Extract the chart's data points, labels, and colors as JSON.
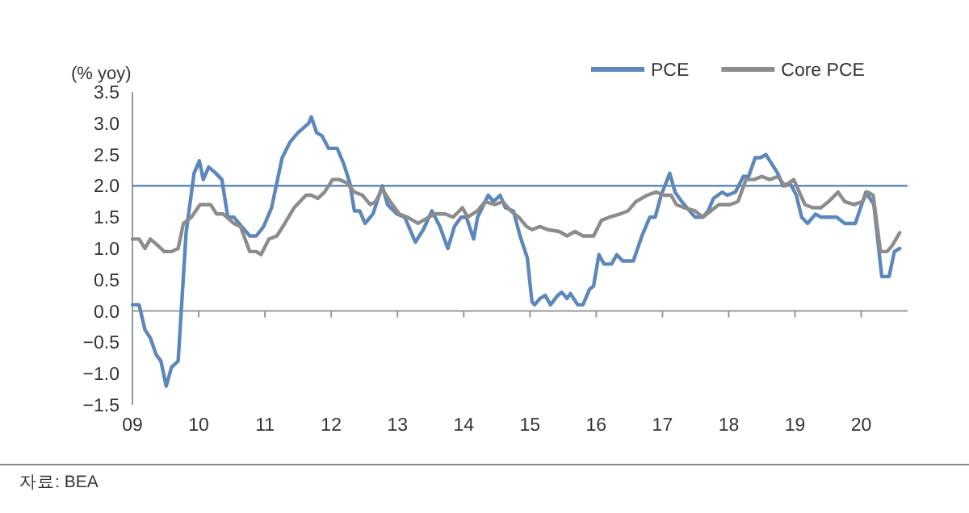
{
  "chart_data": {
    "type": "line",
    "ylabel": "(% yoy)",
    "legend": "top right",
    "line_style": "solid",
    "marker": "none",
    "xlim": [
      2009,
      2020.7
    ],
    "ylim": [
      -1.5,
      3.5
    ],
    "xticks": [
      {
        "value": 2009,
        "label": "09"
      },
      {
        "value": 2010,
        "label": "10"
      },
      {
        "value": 2011,
        "label": "11"
      },
      {
        "value": 2012,
        "label": "12"
      },
      {
        "value": 2013,
        "label": "13"
      },
      {
        "value": 2014,
        "label": "14"
      },
      {
        "value": 2015,
        "label": "15"
      },
      {
        "value": 2016,
        "label": "16"
      },
      {
        "value": 2017,
        "label": "17"
      },
      {
        "value": 2018,
        "label": "18"
      },
      {
        "value": 2019,
        "label": "19"
      },
      {
        "value": 2020,
        "label": "20"
      }
    ],
    "yticks": [
      {
        "value": 3.5,
        "label": "3.5"
      },
      {
        "value": 3,
        "label": "3.0"
      },
      {
        "value": 2.5,
        "label": "2.5"
      },
      {
        "value": 2,
        "label": "2.0"
      },
      {
        "value": 1.5,
        "label": "1.5"
      },
      {
        "value": 1,
        "label": "1.0"
      },
      {
        "value": 0.5,
        "label": "0.5"
      },
      {
        "value": 0,
        "label": "0.0"
      },
      {
        "value": -0.5,
        "label": "−0.5"
      },
      {
        "value": -1,
        "label": "−1.0"
      },
      {
        "value": -1.5,
        "label": "−1.5"
      }
    ],
    "ref_lines": [
      {
        "axis": "y",
        "value": 2,
        "color": "#4f7fb5"
      }
    ],
    "annotations": [
      "자료: BEA"
    ],
    "series": [
      {
        "name": "PCE",
        "color": "#5b87bd",
        "x": [
          2009.0,
          2009.1,
          2009.19,
          2009.27,
          2009.36,
          2009.43,
          2009.51,
          2009.59,
          2009.69,
          2009.81,
          2009.93,
          2010.01,
          2010.07,
          2010.15,
          2010.26,
          2010.35,
          2010.44,
          2010.53,
          2010.65,
          2010.77,
          2010.87,
          2010.98,
          2011.1,
          2011.26,
          2011.38,
          2011.5,
          2011.66,
          2011.7,
          2011.78,
          2011.86,
          2011.96,
          2012.09,
          2012.19,
          2012.28,
          2012.35,
          2012.43,
          2012.51,
          2012.63,
          2012.77,
          2012.85,
          2012.99,
          2013.11,
          2013.27,
          2013.39,
          2013.52,
          2013.64,
          2013.76,
          2013.86,
          2013.96,
          2014.04,
          2014.15,
          2014.21,
          2014.37,
          2014.45,
          2014.55,
          2014.63,
          2014.75,
          2014.85,
          2014.96,
          2015.03,
          2015.07,
          2015.15,
          2015.23,
          2015.31,
          2015.42,
          2015.48,
          2015.56,
          2015.61,
          2015.72,
          2015.8,
          2015.9,
          2015.96,
          2016.04,
          2016.12,
          2016.23,
          2016.31,
          2016.4,
          2016.56,
          2016.69,
          2016.81,
          2016.89,
          2016.98,
          2017.11,
          2017.19,
          2017.29,
          2017.41,
          2017.49,
          2017.61,
          2017.69,
          2017.77,
          2017.9,
          2017.98,
          2018.1,
          2018.22,
          2018.3,
          2018.4,
          2018.48,
          2018.56,
          2018.65,
          2018.74,
          2018.82,
          2018.92,
          2019.02,
          2019.1,
          2019.19,
          2019.31,
          2019.39,
          2019.63,
          2019.75,
          2019.91,
          2020.07,
          2020.19,
          2020.31,
          2020.42,
          2020.5,
          2020.58
        ],
        "values": [
          0.1,
          0.1,
          -0.3,
          -0.43,
          -0.7,
          -0.8,
          -1.2,
          -0.9,
          -0.8,
          1.25,
          2.2,
          2.4,
          2.1,
          2.3,
          2.2,
          2.1,
          1.5,
          1.5,
          1.35,
          1.2,
          1.2,
          1.35,
          1.65,
          2.45,
          2.7,
          2.85,
          3.0,
          3.1,
          2.85,
          2.8,
          2.6,
          2.6,
          2.35,
          2.05,
          1.6,
          1.6,
          1.4,
          1.55,
          2.0,
          1.7,
          1.55,
          1.5,
          1.1,
          1.3,
          1.6,
          1.35,
          1.0,
          1.35,
          1.5,
          1.5,
          1.15,
          1.5,
          1.85,
          1.75,
          1.85,
          1.65,
          1.6,
          1.2,
          0.85,
          0.15,
          0.1,
          0.2,
          0.25,
          0.1,
          0.25,
          0.3,
          0.2,
          0.28,
          0.1,
          0.1,
          0.35,
          0.4,
          0.9,
          0.75,
          0.75,
          0.9,
          0.8,
          0.8,
          1.2,
          1.5,
          1.5,
          1.85,
          2.2,
          1.9,
          1.75,
          1.6,
          1.5,
          1.5,
          1.6,
          1.8,
          1.9,
          1.85,
          1.9,
          2.15,
          2.15,
          2.45,
          2.45,
          2.5,
          2.35,
          2.2,
          2.0,
          2.05,
          1.85,
          1.5,
          1.4,
          1.55,
          1.5,
          1.5,
          1.4,
          1.4,
          1.9,
          1.7,
          0.55,
          0.55,
          0.95,
          1.0
        ]
      },
      {
        "name": "Core PCE",
        "color": "#8c8c8c",
        "x": [
          2009.0,
          2009.1,
          2009.19,
          2009.27,
          2009.38,
          2009.48,
          2009.59,
          2009.69,
          2009.77,
          2009.89,
          2010.02,
          2010.12,
          2010.18,
          2010.27,
          2010.37,
          2010.53,
          2010.63,
          2010.77,
          2010.87,
          2010.94,
          2011.06,
          2011.18,
          2011.3,
          2011.44,
          2011.62,
          2011.7,
          2011.8,
          2011.9,
          2012.02,
          2012.12,
          2012.23,
          2012.35,
          2012.47,
          2012.59,
          2012.67,
          2012.77,
          2012.89,
          2013.03,
          2013.15,
          2013.31,
          2013.39,
          2013.56,
          2013.72,
          2013.84,
          2013.98,
          2014.06,
          2014.21,
          2014.32,
          2014.47,
          2014.59,
          2014.71,
          2014.83,
          2014.95,
          2015.03,
          2015.15,
          2015.27,
          2015.44,
          2015.56,
          2015.68,
          2015.8,
          2015.96,
          2016.08,
          2016.2,
          2016.36,
          2016.48,
          2016.6,
          2016.77,
          2016.9,
          2017.03,
          2017.13,
          2017.21,
          2017.33,
          2017.49,
          2017.61,
          2017.73,
          2017.85,
          2018.02,
          2018.14,
          2018.26,
          2018.38,
          2018.5,
          2018.62,
          2018.74,
          2018.85,
          2018.98,
          2019.15,
          2019.27,
          2019.39,
          2019.51,
          2019.65,
          2019.75,
          2019.89,
          2020.02,
          2020.1,
          2020.18,
          2020.29,
          2020.39,
          2020.47,
          2020.58
        ],
        "values": [
          1.15,
          1.15,
          1.0,
          1.15,
          1.05,
          0.95,
          0.95,
          1.0,
          1.4,
          1.5,
          1.7,
          1.7,
          1.7,
          1.55,
          1.55,
          1.4,
          1.35,
          0.95,
          0.95,
          0.9,
          1.15,
          1.2,
          1.4,
          1.65,
          1.85,
          1.85,
          1.8,
          1.9,
          2.1,
          2.1,
          2.05,
          1.9,
          1.85,
          1.7,
          1.75,
          1.95,
          1.75,
          1.55,
          1.5,
          1.4,
          1.45,
          1.55,
          1.55,
          1.5,
          1.65,
          1.5,
          1.6,
          1.75,
          1.7,
          1.75,
          1.6,
          1.5,
          1.35,
          1.3,
          1.35,
          1.3,
          1.27,
          1.2,
          1.27,
          1.2,
          1.2,
          1.45,
          1.5,
          1.55,
          1.6,
          1.75,
          1.85,
          1.9,
          1.85,
          1.85,
          1.7,
          1.65,
          1.6,
          1.5,
          1.6,
          1.7,
          1.7,
          1.75,
          2.1,
          2.1,
          2.15,
          2.1,
          2.15,
          2.0,
          2.1,
          1.7,
          1.65,
          1.65,
          1.75,
          1.9,
          1.75,
          1.7,
          1.75,
          1.9,
          1.85,
          0.95,
          0.95,
          1.05,
          1.25
        ]
      }
    ]
  }
}
